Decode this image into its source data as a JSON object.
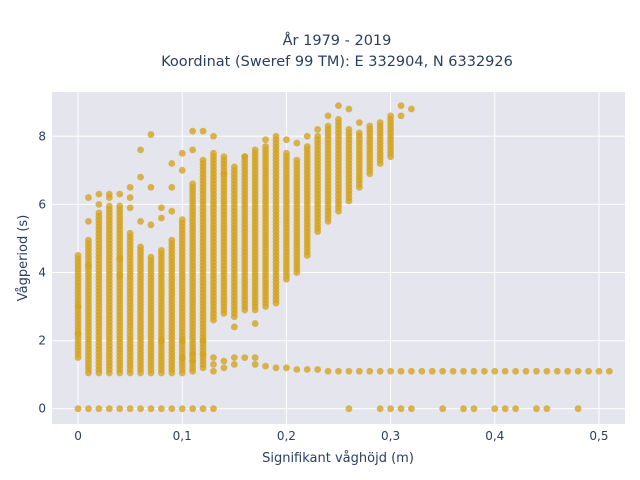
{
  "chart_data": {
    "type": "scatter",
    "title_line1": "År 1979 - 2019",
    "title_line2": "Koordinat (Sweref 99 TM): E 332904, N 6332926",
    "xlabel": "Signifikant våghöjd (m)",
    "ylabel": "Vågperiod (s)",
    "xlim": [
      -0.025,
      0.525
    ],
    "ylim": [
      -0.45,
      9.3
    ],
    "x_ticks": [
      {
        "value": 0,
        "label": "0"
      },
      {
        "value": 0.1,
        "label": "0,1"
      },
      {
        "value": 0.2,
        "label": "0,2"
      },
      {
        "value": 0.3,
        "label": "0,3"
      },
      {
        "value": 0.4,
        "label": "0,4"
      },
      {
        "value": 0.5,
        "label": "0,5"
      }
    ],
    "y_ticks": [
      {
        "value": 0,
        "label": "0"
      },
      {
        "value": 2,
        "label": "2"
      },
      {
        "value": 4,
        "label": "4"
      },
      {
        "value": 6,
        "label": "6"
      },
      {
        "value": 8,
        "label": "8"
      }
    ],
    "grid": true,
    "marker_color": "#d4a31e",
    "background_color": "#e5e5ee",
    "columns": [
      {
        "x": 0.0,
        "ymin": 1.5,
        "ymax": 4.4,
        "extra": [
          4.5,
          3.0,
          2.2
        ]
      },
      {
        "x": 0.01,
        "ymin": 1.05,
        "ymax": 5.0,
        "extra": [
          6.2,
          5.5,
          4.2
        ]
      },
      {
        "x": 0.02,
        "ymin": 1.05,
        "ymax": 5.8,
        "extra": [
          6.3,
          6.0
        ]
      },
      {
        "x": 0.03,
        "ymin": 1.05,
        "ymax": 6.0,
        "extra": [
          6.3,
          6.2
        ]
      },
      {
        "x": 0.04,
        "ymin": 1.05,
        "ymax": 6.0,
        "extra": [
          6.3,
          4.4,
          3.9
        ]
      },
      {
        "x": 0.05,
        "ymin": 1.05,
        "ymax": 5.2,
        "extra": [
          6.5,
          6.2,
          5.9
        ]
      },
      {
        "x": 0.06,
        "ymin": 1.05,
        "ymax": 4.8,
        "extra": [
          7.6,
          6.8,
          5.5
        ]
      },
      {
        "x": 0.07,
        "ymin": 1.05,
        "ymax": 4.5,
        "extra": [
          8.05,
          6.5,
          5.4
        ]
      },
      {
        "x": 0.08,
        "ymin": 1.05,
        "ymax": 4.7,
        "extra": [
          5.9,
          5.6,
          2.0
        ]
      },
      {
        "x": 0.09,
        "ymin": 1.05,
        "ymax": 5.0,
        "extra": [
          7.2,
          6.5,
          5.8
        ]
      },
      {
        "x": 0.1,
        "ymin": 1.05,
        "ymax": 5.6,
        "extra": [
          7.5,
          7.0,
          2.0,
          1.5
        ]
      },
      {
        "x": 0.11,
        "ymin": 1.1,
        "ymax": 6.6,
        "extra": [
          8.15,
          7.6,
          1.6,
          1.4
        ]
      },
      {
        "x": 0.12,
        "ymin": 1.2,
        "ymax": 7.3,
        "extra": [
          8.15,
          2.0,
          1.6
        ]
      },
      {
        "x": 0.13,
        "ymin": 2.6,
        "ymax": 7.5,
        "extra": [
          8.0,
          1.5,
          1.3,
          1.1
        ]
      },
      {
        "x": 0.14,
        "ymin": 2.8,
        "ymax": 7.4,
        "extra": [
          6.9,
          1.4,
          1.2
        ]
      },
      {
        "x": 0.15,
        "ymin": 2.7,
        "ymax": 7.1,
        "extra": [
          2.4,
          1.5,
          1.3
        ]
      },
      {
        "x": 0.16,
        "ymin": 3.0,
        "ymax": 7.4,
        "extra": [
          7.4,
          2.9,
          1.5
        ]
      },
      {
        "x": 0.17,
        "ymin": 2.9,
        "ymax": 7.6,
        "extra": [
          2.5,
          1.5,
          1.3
        ]
      },
      {
        "x": 0.18,
        "ymin": 3.0,
        "ymax": 7.7,
        "extra": [
          7.9,
          1.25
        ]
      },
      {
        "x": 0.19,
        "ymin": 3.1,
        "ymax": 7.9,
        "extra": [
          8.0,
          1.2
        ]
      },
      {
        "x": 0.2,
        "ymin": 3.8,
        "ymax": 7.5,
        "extra": [
          7.9,
          1.2
        ]
      },
      {
        "x": 0.21,
        "ymin": 4.0,
        "ymax": 7.3,
        "extra": [
          7.8,
          1.15
        ]
      },
      {
        "x": 0.22,
        "ymin": 4.5,
        "ymax": 7.7,
        "extra": [
          8.0,
          1.15
        ]
      },
      {
        "x": 0.23,
        "ymin": 5.2,
        "ymax": 8.0,
        "extra": [
          8.2,
          1.15
        ]
      },
      {
        "x": 0.24,
        "ymin": 5.5,
        "ymax": 8.3,
        "extra": [
          8.6,
          1.1
        ]
      },
      {
        "x": 0.25,
        "ymin": 5.8,
        "ymax": 8.5,
        "extra": [
          8.9,
          1.1
        ]
      },
      {
        "x": 0.26,
        "ymin": 6.1,
        "ymax": 8.2,
        "extra": [
          8.8,
          1.1
        ]
      },
      {
        "x": 0.27,
        "ymin": 6.5,
        "ymax": 8.1,
        "extra": [
          8.4,
          1.1
        ]
      },
      {
        "x": 0.28,
        "ymin": 6.9,
        "ymax": 8.2,
        "extra": [
          8.3,
          1.1
        ]
      },
      {
        "x": 0.29,
        "ymin": 7.2,
        "ymax": 8.3,
        "extra": [
          8.4,
          1.1
        ]
      },
      {
        "x": 0.3,
        "ymin": 7.4,
        "ymax": 8.5,
        "extra": [
          8.6,
          1.1
        ]
      },
      {
        "x": 0.31,
        "ymin": 8.6,
        "ymax": 8.6,
        "extra": [
          8.9,
          1.1
        ]
      },
      {
        "x": 0.32,
        "ymin": 8.8,
        "ymax": 8.8,
        "extra": [
          1.1
        ]
      }
    ],
    "tail_y": 1.1,
    "tail_x_range": [
      0.33,
      0.51
    ],
    "zero_row_x": [
      0.0,
      0.01,
      0.02,
      0.03,
      0.04,
      0.05,
      0.06,
      0.07,
      0.08,
      0.09,
      0.1,
      0.11,
      0.12,
      0.13,
      0.26,
      0.29,
      0.3,
      0.31,
      0.32,
      0.35,
      0.37,
      0.38,
      0.4,
      0.41,
      0.42,
      0.44,
      0.45,
      0.48
    ]
  }
}
